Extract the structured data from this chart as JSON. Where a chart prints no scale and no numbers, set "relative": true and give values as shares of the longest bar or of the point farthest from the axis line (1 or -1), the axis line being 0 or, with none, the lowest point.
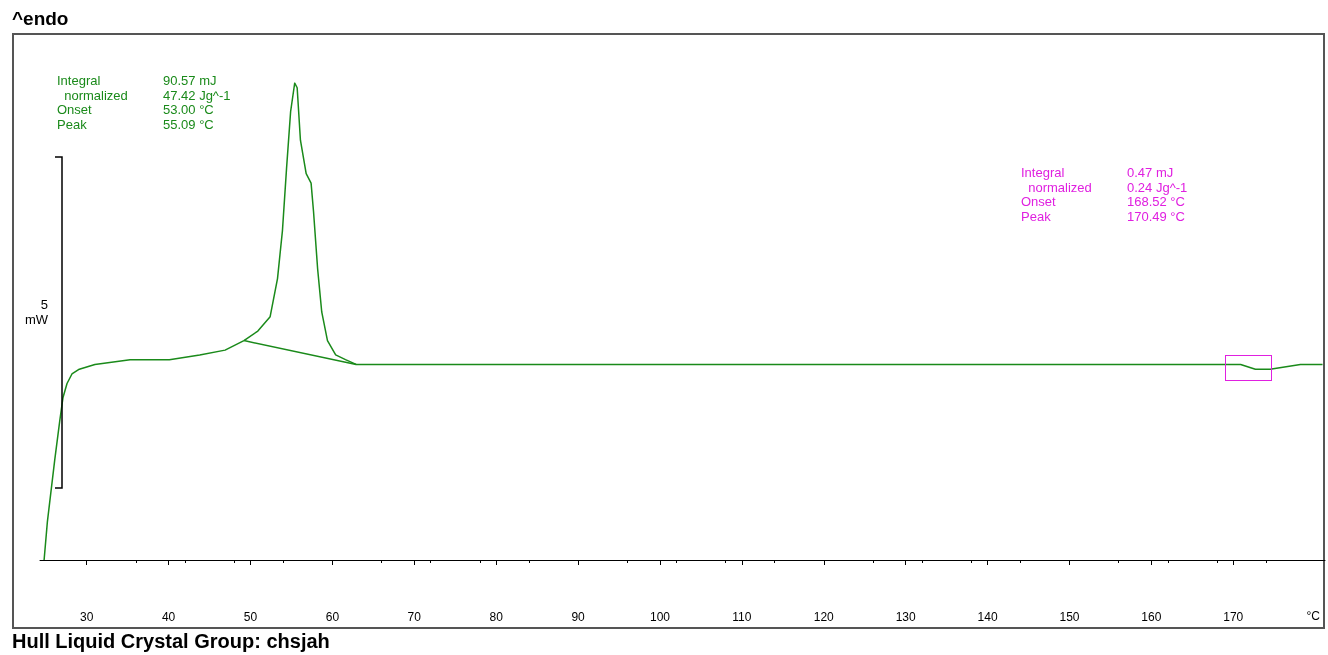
{
  "chart_data": {
    "type": "line",
    "relative": true,
    "xlabel": "°C",
    "xlim": [
      24.3,
      181.2
    ],
    "xticks": [
      30,
      40,
      50,
      60,
      70,
      80,
      90,
      100,
      110,
      120,
      130,
      140,
      150,
      160,
      170
    ],
    "grid": false,
    "marker": "none",
    "line_style": "solid",
    "annotations": [
      "^endo",
      "Integral\t90.57 mJ\n  normalized\t47.42 Jg^-1\nOnset\t53.00 °C\nPeak\t55.09 °C",
      "Integral\t0.47 mJ\n  normalized\t0.24 Jg^-1\nOnset\t168.52 °C\nPeak\t170.49 °C",
      "5\nmW",
      "Hull Liquid Crystal Group: chsjah"
    ],
    "series": [
      {
        "color": "#1a8a1a",
        "x": [
          24.8,
          25.2,
          26.1,
          26.7,
          27.1,
          27.6,
          28.2,
          29.1,
          31.0,
          35.3,
          40.1,
          43.8,
          46.9,
          49.2,
          50.9,
          52.4,
          53.3,
          53.9,
          54.4,
          54.9,
          55.4,
          55.7,
          56.1,
          56.8,
          57.4,
          57.7,
          58.2,
          58.7,
          59.4,
          60.4,
          61.6,
          62.9,
          68.2,
          80.5,
          104.9,
          129.3,
          153.8,
          159.9,
          169.0,
          170.9,
          172.7,
          174.5,
          178.2,
          180.4,
          180.9
        ],
        "values": [
          0,
          0.08,
          0.21,
          0.29,
          0.34,
          0.37,
          0.39,
          0.4,
          0.41,
          0.42,
          0.42,
          0.43,
          0.44,
          0.46,
          0.48,
          0.51,
          0.59,
          0.69,
          0.82,
          0.94,
          1,
          0.99,
          0.88,
          0.81,
          0.79,
          0.73,
          0.61,
          0.52,
          0.46,
          0.43,
          0.42,
          0.41,
          0.41,
          0.41,
          0.41,
          0.41,
          0.41,
          0.41,
          0.41,
          0.41,
          0.4,
          0.4,
          0.41,
          0.41,
          0.41
        ]
      },
      {
        "color": "#1a8a1a",
        "x": [
          49.2,
          62.9
        ],
        "values": [
          0.46,
          0.41
        ]
      }
    ]
  }
}
